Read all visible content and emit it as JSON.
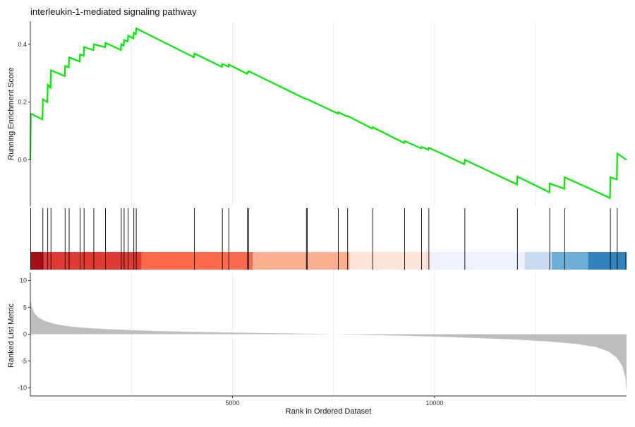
{
  "chart_data": {
    "type": "line",
    "title": "interleukin-1-mediated signaling pathway",
    "xlabel": "Rank in Ordered Dataset",
    "x_ticks": [
      5000,
      10000
    ],
    "xlim": [
      0,
      14750
    ],
    "grid": true,
    "colors": {
      "curve": "#00ee00",
      "hits": "#000000",
      "metric_fill": "#bdbdbd",
      "grid": "#ebebeb"
    },
    "running_score": {
      "ylabel": "Running Enrichment Score",
      "y_ticks": [
        0.0,
        0.2,
        0.4
      ],
      "y_tick_labels": [
        "0.0",
        "0.2",
        "0.4"
      ],
      "ylim": [
        -0.16,
        0.48
      ],
      "points": [
        [
          0,
          0.0
        ],
        [
          12,
          0.16
        ],
        [
          300,
          0.14
        ],
        [
          310,
          0.21
        ],
        [
          420,
          0.2
        ],
        [
          430,
          0.26
        ],
        [
          500,
          0.25
        ],
        [
          510,
          0.31
        ],
        [
          850,
          0.29
        ],
        [
          860,
          0.325
        ],
        [
          950,
          0.32
        ],
        [
          960,
          0.355
        ],
        [
          1220,
          0.34
        ],
        [
          1230,
          0.365
        ],
        [
          1320,
          0.36
        ],
        [
          1330,
          0.39
        ],
        [
          1560,
          0.38
        ],
        [
          1570,
          0.4
        ],
        [
          1850,
          0.39
        ],
        [
          1860,
          0.405
        ],
        [
          2240,
          0.38
        ],
        [
          2250,
          0.4
        ],
        [
          2310,
          0.395
        ],
        [
          2320,
          0.415
        ],
        [
          2410,
          0.41
        ],
        [
          2420,
          0.43
        ],
        [
          2550,
          0.42
        ],
        [
          2560,
          0.44
        ],
        [
          2610,
          0.435
        ],
        [
          2620,
          0.455
        ],
        [
          4050,
          0.355
        ],
        [
          4060,
          0.368
        ],
        [
          4740,
          0.322
        ],
        [
          4750,
          0.332
        ],
        [
          4900,
          0.322
        ],
        [
          4910,
          0.33
        ],
        [
          5360,
          0.298
        ],
        [
          5370,
          0.303
        ],
        [
          5390,
          0.302
        ],
        [
          5400,
          0.307
        ],
        [
          6820,
          0.21
        ],
        [
          6830,
          0.21
        ],
        [
          6840,
          0.21
        ],
        [
          6850,
          0.21
        ],
        [
          7610,
          0.16
        ],
        [
          7620,
          0.165
        ],
        [
          7840,
          0.15
        ],
        [
          7850,
          0.152
        ],
        [
          8460,
          0.108
        ],
        [
          8470,
          0.113
        ],
        [
          9250,
          0.058
        ],
        [
          9260,
          0.065
        ],
        [
          9670,
          0.04
        ],
        [
          9680,
          0.045
        ],
        [
          9850,
          0.035
        ],
        [
          9860,
          0.042
        ],
        [
          10740,
          -0.015
        ],
        [
          10750,
          0.0
        ],
        [
          12040,
          -0.085
        ],
        [
          12050,
          -0.058
        ],
        [
          12840,
          -0.112
        ],
        [
          12850,
          -0.082
        ],
        [
          13210,
          -0.1
        ],
        [
          13220,
          -0.06
        ],
        [
          14340,
          -0.132
        ],
        [
          14350,
          -0.06
        ],
        [
          14510,
          -0.068
        ],
        [
          14520,
          0.022
        ],
        [
          14750,
          0.0
        ]
      ]
    },
    "hit_positions": [
      10,
      310,
      430,
      510,
      860,
      960,
      1230,
      1330,
      1570,
      1860,
      2250,
      2320,
      2420,
      2560,
      2620,
      4060,
      4750,
      4910,
      5370,
      5400,
      6830,
      6850,
      7620,
      7850,
      8470,
      9260,
      9680,
      9860,
      10750,
      12050,
      12850,
      13220,
      14350,
      14520
    ],
    "color_bands": [
      {
        "from": 0,
        "to": 300,
        "color": "#a50f15"
      },
      {
        "from": 300,
        "to": 2750,
        "color": "#e03b33"
      },
      {
        "from": 2750,
        "to": 5500,
        "color": "#fb6a4a"
      },
      {
        "from": 5500,
        "to": 7900,
        "color": "#fcae91"
      },
      {
        "from": 7900,
        "to": 9900,
        "color": "#fee5d9"
      },
      {
        "from": 9900,
        "to": 12230,
        "color": "#eff3ff"
      },
      {
        "from": 12230,
        "to": 12900,
        "color": "#c6dbef"
      },
      {
        "from": 12900,
        "to": 13800,
        "color": "#6baed6"
      },
      {
        "from": 13800,
        "to": 14710,
        "color": "#3182bd"
      },
      {
        "from": 14710,
        "to": 14750,
        "color": "#08519c"
      }
    ],
    "ranked_metric": {
      "ylabel": "Ranked List Metric",
      "y_ticks": [
        10,
        5,
        0,
        -5,
        -10
      ],
      "y_tick_labels": [
        "10",
        "5",
        "0",
        "-5",
        "-10"
      ],
      "ylim": [
        -11.5,
        11.5
      ],
      "points": [
        [
          0,
          6.5
        ],
        [
          40,
          5.0
        ],
        [
          100,
          3.9
        ],
        [
          200,
          3.1
        ],
        [
          350,
          2.5
        ],
        [
          600,
          1.9
        ],
        [
          1000,
          1.4
        ],
        [
          1500,
          1.1
        ],
        [
          2000,
          0.9
        ],
        [
          3000,
          0.6
        ],
        [
          4000,
          0.45
        ],
        [
          5000,
          0.3
        ],
        [
          6000,
          0.18
        ],
        [
          7000,
          0.08
        ],
        [
          7500,
          0.0
        ],
        [
          8000,
          -0.08
        ],
        [
          9000,
          -0.25
        ],
        [
          10000,
          -0.45
        ],
        [
          11000,
          -0.7
        ],
        [
          12000,
          -1.0
        ],
        [
          12800,
          -1.35
        ],
        [
          13500,
          -1.8
        ],
        [
          14000,
          -2.4
        ],
        [
          14300,
          -3.2
        ],
        [
          14500,
          -4.3
        ],
        [
          14650,
          -6.0
        ],
        [
          14720,
          -8.0
        ],
        [
          14750,
          -10.8
        ]
      ]
    }
  }
}
